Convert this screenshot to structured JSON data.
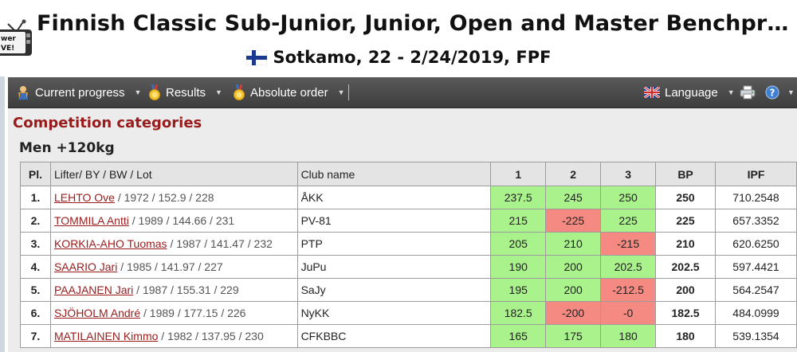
{
  "header": {
    "title": "Finnish Classic Sub-Junior, Junior, Open and Master Benchpr…",
    "subtitle": "Sotkamo, 22 - 2/24/2019, FPF",
    "logo_text_top": "wer",
    "logo_text_bottom": "VE!"
  },
  "toolbar": {
    "current_progress": "Current progress",
    "results": "Results",
    "absolute_order": "Absolute order",
    "language": "Language"
  },
  "main": {
    "section_title": "Competition categories",
    "category_title": "Men +120kg",
    "columns": [
      "Pl.",
      "Lifter/ BY / BW / Lot",
      "Club name",
      "1",
      "2",
      "3",
      "BP",
      "IPF"
    ],
    "rows": [
      {
        "place": "1.",
        "name": "LEHTO Ove",
        "info": " / 1972 / 152.9 / 228",
        "club": "ÅKK",
        "a1": "237.5",
        "a2": "245",
        "a3": "250",
        "bp": "250",
        "ipf": "710.2548"
      },
      {
        "place": "2.",
        "name": "TOMMILA Antti",
        "info": " / 1989 / 144.66 / 231",
        "club": "PV-81",
        "a1": "215",
        "a2": "-225",
        "a3": "225",
        "bp": "225",
        "ipf": "657.3352"
      },
      {
        "place": "3.",
        "name": "KORKIA-AHO Tuomas",
        "info": " / 1987 / 141.47 / 232",
        "club": "PTP",
        "a1": "205",
        "a2": "210",
        "a3": "-215",
        "bp": "210",
        "ipf": "620.6250"
      },
      {
        "place": "4.",
        "name": "SAARIO Jari",
        "info": " / 1985 / 141.97 / 227",
        "club": "JuPu",
        "a1": "190",
        "a2": "200",
        "a3": "202.5",
        "bp": "202.5",
        "ipf": "597.4421"
      },
      {
        "place": "5.",
        "name": "PAAJANEN Jari",
        "info": " / 1987 / 155.31 / 229",
        "club": "SaJy",
        "a1": "195",
        "a2": "200",
        "a3": "-212.5",
        "bp": "200",
        "ipf": "564.2547"
      },
      {
        "place": "6.",
        "name": "SJÖHOLM André",
        "info": " / 1989 / 177.15 / 226",
        "club": "NyKK",
        "a1": "182.5",
        "a2": "-200",
        "a3": "-0",
        "bp": "182.5",
        "ipf": "484.0999"
      },
      {
        "place": "7.",
        "name": "MATILAINEN Kimmo",
        "info": " / 1982 / 137.95 / 230",
        "club": "CFKBBC",
        "a1": "165",
        "a2": "175",
        "a3": "180",
        "bp": "180",
        "ipf": "539.1354"
      }
    ]
  },
  "colors": {
    "good_attempt": "#a9f28c",
    "failed_attempt": "#f58a82",
    "accent": "#9a1b1b",
    "toolbar": "#474747"
  }
}
